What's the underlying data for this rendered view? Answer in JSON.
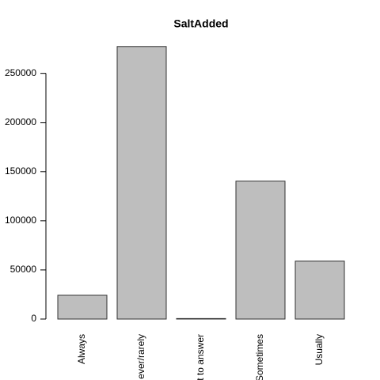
{
  "chart_data": {
    "type": "bar",
    "title": "SaltAdded",
    "categories": [
      "Always",
      "ever/rarely",
      "t to answer",
      "Sometimes",
      "Usually"
    ],
    "values": [
      24200,
      277300,
      500,
      140300,
      58900
    ],
    "color": "#bebebe",
    "ylim": [
      0,
      288400
    ],
    "yticks": [
      0,
      50000,
      100000,
      150000,
      200000,
      250000
    ]
  }
}
